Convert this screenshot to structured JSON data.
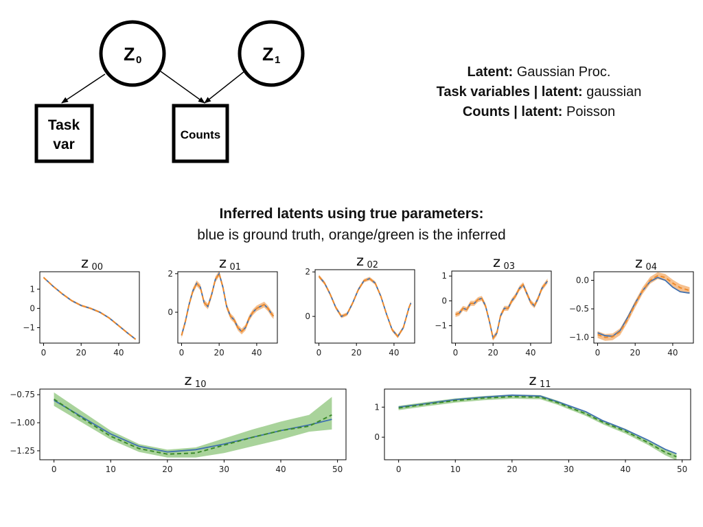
{
  "graph": {
    "nodes": [
      {
        "id": "z0",
        "kind": "latent",
        "label": "Z",
        "sub": "0"
      },
      {
        "id": "z1",
        "kind": "latent",
        "label": "Z",
        "sub": "1"
      },
      {
        "id": "task",
        "kind": "observed",
        "lines": [
          "Task",
          "var"
        ]
      },
      {
        "id": "counts",
        "kind": "observed",
        "lines": [
          "Counts"
        ]
      }
    ],
    "edges": [
      {
        "from": "z0",
        "to": "task"
      },
      {
        "from": "z0",
        "to": "counts"
      },
      {
        "from": "z1",
        "to": "counts"
      }
    ]
  },
  "description": {
    "line1": {
      "key": "Latent:",
      "value": "Gaussian Proc."
    },
    "line2": {
      "key": "Task variables | latent:",
      "value": "gaussian"
    },
    "line3": {
      "key": "Counts | latent:",
      "value": "Poisson"
    }
  },
  "heading": {
    "bold": "Inferred latents using true parameters:",
    "sub": "blue is ground truth, orange/green is the inferred"
  },
  "colors": {
    "truth": "#3f70b0",
    "inferred_orange": "#f08a2a",
    "inferred_green": "#3a8a2a",
    "band_orange": "#f5b57a",
    "band_green": "#8cc47a"
  },
  "chart_data": [
    {
      "type": "line",
      "title": "z",
      "sub": "00",
      "xlim": [
        -2,
        51
      ],
      "ylim": [
        -1.8,
        1.9
      ],
      "xticks": [
        0,
        20,
        40
      ],
      "yticks": [
        1,
        0,
        -1
      ],
      "ytick_labels": [
        "1",
        "0",
        "−1"
      ],
      "band": "orange",
      "x": [
        0,
        5,
        10,
        15,
        20,
        25,
        30,
        35,
        40,
        45,
        49
      ],
      "truth": [
        1.6,
        1.15,
        0.75,
        0.4,
        0.15,
        0.0,
        -0.2,
        -0.5,
        -0.9,
        -1.3,
        -1.6
      ],
      "inferred": [
        1.6,
        1.15,
        0.75,
        0.4,
        0.15,
        0.0,
        -0.2,
        -0.5,
        -0.9,
        -1.3,
        -1.6
      ],
      "band_width": 0.05
    },
    {
      "type": "line",
      "title": "z",
      "sub": "01",
      "xlim": [
        -2,
        51
      ],
      "ylim": [
        -1.6,
        2.1
      ],
      "xticks": [
        0,
        20,
        40
      ],
      "yticks": [
        2,
        0
      ],
      "ytick_labels": [
        "2",
        "0"
      ],
      "band": "orange",
      "x": [
        0,
        2,
        4,
        6,
        8,
        10,
        12,
        14,
        16,
        18,
        20,
        22,
        24,
        26,
        28,
        30,
        32,
        34,
        36,
        38,
        40,
        42,
        44,
        46,
        48,
        49
      ],
      "truth": [
        -1.2,
        -0.5,
        0.4,
        1.1,
        1.5,
        1.3,
        0.5,
        0.3,
        0.9,
        1.7,
        2.0,
        1.3,
        0.3,
        -0.2,
        -0.4,
        -0.8,
        -1.0,
        -0.8,
        -0.3,
        0.0,
        0.2,
        0.3,
        0.4,
        0.2,
        -0.1,
        -0.2
      ],
      "inferred": [
        -1.2,
        -0.5,
        0.4,
        1.1,
        1.5,
        1.3,
        0.5,
        0.3,
        0.9,
        1.7,
        2.0,
        1.3,
        0.3,
        -0.2,
        -0.4,
        -0.8,
        -1.0,
        -0.8,
        -0.3,
        0.0,
        0.2,
        0.3,
        0.4,
        0.2,
        -0.1,
        -0.2
      ],
      "band_width": 0.15
    },
    {
      "type": "line",
      "title": "z",
      "sub": "02",
      "xlim": [
        -2,
        51
      ],
      "ylim": [
        -1.2,
        2.1
      ],
      "xticks": [
        0,
        20,
        40
      ],
      "yticks": [
        2,
        0
      ],
      "ytick_labels": [
        "2",
        "0"
      ],
      "band": "orange",
      "x": [
        0,
        3,
        6,
        9,
        12,
        15,
        18,
        21,
        24,
        27,
        30,
        33,
        36,
        39,
        42,
        45,
        48,
        49
      ],
      "truth": [
        1.8,
        1.5,
        1.0,
        0.4,
        0.0,
        0.1,
        0.6,
        1.2,
        1.6,
        1.7,
        1.5,
        0.9,
        0.1,
        -0.6,
        -0.9,
        -0.5,
        0.4,
        0.6
      ],
      "inferred": [
        1.8,
        1.5,
        1.0,
        0.4,
        0.0,
        0.1,
        0.6,
        1.2,
        1.6,
        1.7,
        1.5,
        0.9,
        0.1,
        -0.6,
        -0.9,
        -0.5,
        0.4,
        0.6
      ],
      "band_width": 0.08
    },
    {
      "type": "line",
      "title": "z",
      "sub": "03",
      "xlim": [
        -2,
        51
      ],
      "ylim": [
        -1.7,
        1.2
      ],
      "xticks": [
        0,
        20,
        40
      ],
      "yticks": [
        1,
        0,
        -1
      ],
      "ytick_labels": [
        "1",
        "0",
        "−1"
      ],
      "band": "orange",
      "x": [
        0,
        2,
        4,
        6,
        8,
        10,
        12,
        14,
        16,
        18,
        20,
        22,
        24,
        26,
        28,
        30,
        32,
        34,
        36,
        38,
        40,
        42,
        44,
        46,
        48,
        49
      ],
      "truth": [
        -0.55,
        -0.5,
        -0.3,
        -0.35,
        -0.1,
        -0.1,
        0.05,
        0.1,
        -0.2,
        -0.8,
        -1.5,
        -1.3,
        -0.6,
        -0.3,
        -0.3,
        0.0,
        0.2,
        0.5,
        0.65,
        0.3,
        -0.05,
        -0.2,
        0.1,
        0.5,
        0.7,
        0.8
      ],
      "inferred": [
        -0.55,
        -0.5,
        -0.3,
        -0.35,
        -0.1,
        -0.1,
        0.05,
        0.1,
        -0.2,
        -0.8,
        -1.5,
        -1.3,
        -0.6,
        -0.3,
        -0.3,
        0.0,
        0.2,
        0.5,
        0.65,
        0.3,
        -0.05,
        -0.2,
        0.1,
        0.5,
        0.7,
        0.8
      ],
      "band_width": 0.1
    },
    {
      "type": "line",
      "title": "z",
      "sub": "04",
      "xlim": [
        -2,
        51
      ],
      "ylim": [
        -1.1,
        0.15
      ],
      "xticks": [
        0,
        20,
        40
      ],
      "yticks": [
        0.0,
        -0.5,
        -1.0
      ],
      "ytick_labels": [
        "0.0",
        "−0.5",
        "−1.0"
      ],
      "band": "orange",
      "x": [
        0,
        4,
        8,
        12,
        16,
        20,
        24,
        28,
        32,
        36,
        40,
        44,
        48,
        49
      ],
      "truth": [
        -0.92,
        -0.97,
        -0.98,
        -0.88,
        -0.65,
        -0.4,
        -0.18,
        -0.02,
        0.05,
        0.0,
        -0.12,
        -0.2,
        -0.22,
        -0.22
      ],
      "inferred": [
        -0.95,
        -1.0,
        -0.99,
        -0.9,
        -0.68,
        -0.42,
        -0.18,
        0.0,
        0.08,
        0.05,
        -0.05,
        -0.13,
        -0.17,
        -0.18
      ],
      "band_width": 0.06
    },
    {
      "type": "line",
      "title": "z",
      "sub": "10",
      "xlim": [
        -2.5,
        51.5
      ],
      "ylim": [
        -1.33,
        -0.7
      ],
      "xticks": [
        0,
        10,
        20,
        30,
        40,
        50
      ],
      "yticks": [
        -0.75,
        -1.0,
        -1.25
      ],
      "ytick_labels": [
        "−0.75",
        "−1.00",
        "−1.25"
      ],
      "band": "green",
      "x": [
        0,
        5,
        10,
        15,
        20,
        25,
        30,
        35,
        40,
        45,
        49
      ],
      "truth": [
        -0.8,
        -0.95,
        -1.1,
        -1.21,
        -1.26,
        -1.24,
        -1.19,
        -1.13,
        -1.07,
        -1.02,
        -0.97
      ],
      "inferred": [
        -0.79,
        -0.96,
        -1.12,
        -1.23,
        -1.28,
        -1.27,
        -1.2,
        -1.13,
        -1.07,
        -1.03,
        -0.93
      ],
      "band_lower": [
        -0.85,
        -1.0,
        -1.15,
        -1.26,
        -1.31,
        -1.31,
        -1.27,
        -1.21,
        -1.15,
        -1.08,
        -1.06
      ],
      "band_upper": [
        -0.73,
        -0.9,
        -1.07,
        -1.19,
        -1.24,
        -1.22,
        -1.14,
        -1.06,
        -0.99,
        -0.93,
        -0.77
      ]
    },
    {
      "type": "line",
      "title": "z",
      "sub": "11",
      "xlim": [
        -2.5,
        51.5
      ],
      "ylim": [
        -0.75,
        1.6
      ],
      "xticks": [
        0,
        10,
        20,
        30,
        40,
        50
      ],
      "yticks": [
        1,
        0
      ],
      "ytick_labels": [
        "1",
        "0"
      ],
      "band": "green",
      "x": [
        0,
        5,
        10,
        15,
        20,
        25,
        28,
        30,
        33,
        36,
        40,
        44,
        47,
        49
      ],
      "truth": [
        1.0,
        1.12,
        1.25,
        1.33,
        1.4,
        1.37,
        1.18,
        1.05,
        0.85,
        0.55,
        0.25,
        -0.1,
        -0.4,
        -0.55
      ],
      "inferred": [
        0.97,
        1.1,
        1.22,
        1.3,
        1.35,
        1.33,
        1.15,
        1.0,
        0.78,
        0.5,
        0.2,
        -0.18,
        -0.5,
        -0.65
      ],
      "band_lower": [
        0.9,
        1.03,
        1.15,
        1.23,
        1.28,
        1.26,
        1.08,
        0.93,
        0.71,
        0.43,
        0.12,
        -0.26,
        -0.6,
        -0.77
      ],
      "band_upper": [
        1.04,
        1.17,
        1.29,
        1.37,
        1.42,
        1.4,
        1.22,
        1.07,
        0.85,
        0.57,
        0.28,
        -0.1,
        -0.4,
        -0.53
      ]
    }
  ]
}
